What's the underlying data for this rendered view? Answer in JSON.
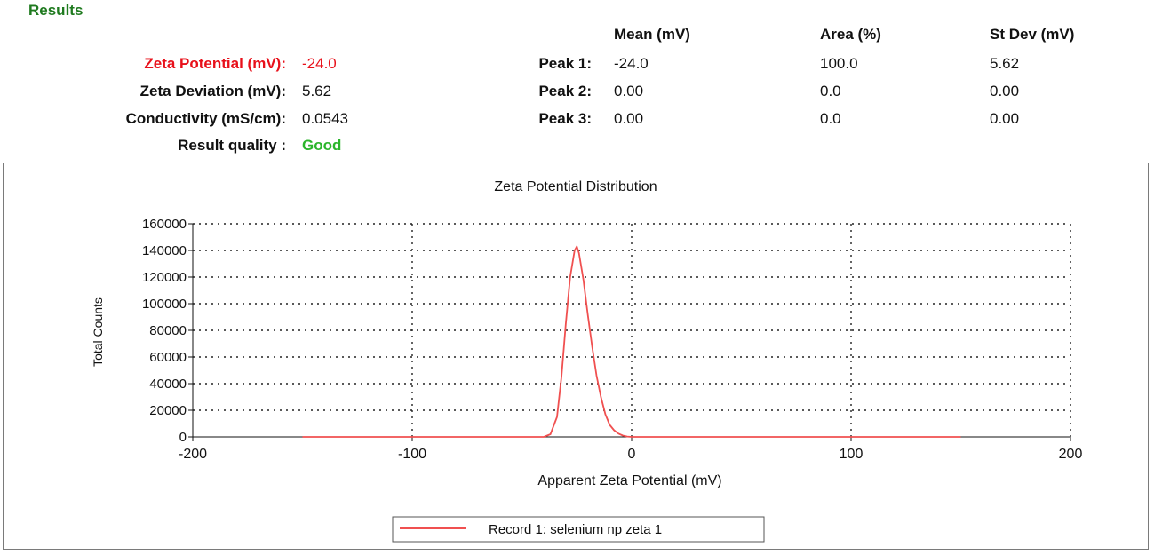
{
  "results": {
    "title": "Results",
    "zeta_potential": {
      "label": "Zeta Potential (mV):",
      "value": "-24.0"
    },
    "zeta_deviation": {
      "label": "Zeta Deviation (mV):",
      "value": "5.62"
    },
    "conductivity": {
      "label": "Conductivity (mS/cm):",
      "value": "0.0543"
    },
    "result_quality": {
      "label": "Result quality :",
      "value": "Good"
    }
  },
  "peaks": {
    "headers": [
      "Mean (mV)",
      "Area (%)",
      "St Dev (mV)"
    ],
    "rows": [
      {
        "label": "Peak 1:",
        "mean": "-24.0",
        "area": "100.0",
        "stdev": "5.62"
      },
      {
        "label": "Peak 2:",
        "mean": "0.00",
        "area": "0.0",
        "stdev": "0.00"
      },
      {
        "label": "Peak 3:",
        "mean": "0.00",
        "area": "0.0",
        "stdev": "0.00"
      }
    ]
  },
  "colors": {
    "accent_red": "#e8101a",
    "good_green": "#2bb52b",
    "title_green": "#1f7a1f",
    "series": "#f05050"
  },
  "chart_data": {
    "type": "line",
    "title": "Zeta Potential Distribution",
    "xlabel": "Apparent Zeta Potential (mV)",
    "ylabel": "Total Counts",
    "xlim": [
      -200,
      200
    ],
    "ylim": [
      0,
      160000
    ],
    "xticks": [
      -200,
      -100,
      0,
      100,
      200
    ],
    "xtick_labels": [
      "-200",
      "-100",
      "0",
      "100",
      "200"
    ],
    "yticks": [
      0,
      20000,
      40000,
      60000,
      80000,
      100000,
      120000,
      140000,
      160000
    ],
    "ytick_labels": [
      "0",
      "20000",
      "40000",
      "60000",
      "80000",
      "100000",
      "120000",
      "140000",
      "160000"
    ],
    "grid": true,
    "legend_position": "bottom-center",
    "series": [
      {
        "name": "Record 1: selenium np zeta 1",
        "x": [
          -150,
          -100,
          -60,
          -40,
          -37,
          -34,
          -32,
          -30,
          -28,
          -26,
          -25,
          -24,
          -22,
          -20,
          -18,
          -16,
          -14,
          -12,
          -10,
          -8,
          -6,
          -4,
          -2,
          0,
          20,
          60,
          100,
          150
        ],
        "y": [
          0,
          0,
          0,
          0,
          2000,
          15000,
          45000,
          85000,
          120000,
          140000,
          143000,
          138000,
          118000,
          92000,
          68000,
          46000,
          30000,
          17000,
          9000,
          5000,
          2500,
          1000,
          300,
          0,
          0,
          0,
          0,
          0
        ]
      }
    ]
  }
}
